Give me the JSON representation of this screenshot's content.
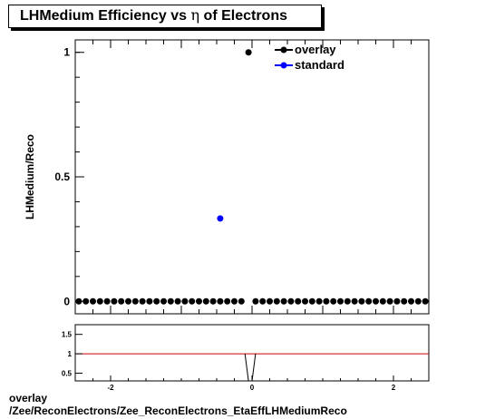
{
  "title": {
    "prefix": "LHMedium Efficiency vs ",
    "symbol": "η",
    "suffix": " of Electrons"
  },
  "footer": {
    "line1": "overlay",
    "line2": "/Zee/ReconElectrons/Zee_ReconElectrons_EtaEffLHMediumReco"
  },
  "chart_data": [
    {
      "type": "scatter",
      "ylabel": "LHMedium/Reco",
      "xlim": [
        -2.5,
        2.5
      ],
      "ylim": [
        -0.05,
        1.05
      ],
      "y_ticks": [
        0,
        0.5,
        1
      ],
      "y_tick_labels": [
        "0",
        "0.5",
        "1"
      ],
      "legend_position": "top-right",
      "series": [
        {
          "name": "overlay",
          "color": "#000000",
          "x": [
            -2.45,
            -2.35,
            -2.25,
            -2.15,
            -2.05,
            -1.95,
            -1.85,
            -1.75,
            -1.65,
            -1.55,
            -1.45,
            -1.35,
            -1.25,
            -1.15,
            -1.05,
            -0.95,
            -0.85,
            -0.75,
            -0.65,
            -0.55,
            -0.45,
            -0.35,
            -0.25,
            -0.15,
            -0.05,
            0.05,
            0.15,
            0.25,
            0.35,
            0.45,
            0.55,
            0.65,
            0.75,
            0.85,
            0.95,
            1.05,
            1.15,
            1.25,
            1.35,
            1.45,
            1.55,
            1.65,
            1.75,
            1.85,
            1.95,
            2.05,
            2.15,
            2.25,
            2.35,
            2.45
          ],
          "y": [
            0,
            0,
            0,
            0,
            0,
            0,
            0,
            0,
            0,
            0,
            0,
            0,
            0,
            0,
            0,
            0,
            0,
            0,
            0,
            0,
            0,
            0,
            0,
            0,
            1,
            0,
            0,
            0,
            0,
            0,
            0,
            0,
            0,
            0,
            0,
            0,
            0,
            0,
            0,
            0,
            0,
            0,
            0,
            0,
            0,
            0,
            0,
            0,
            0,
            0
          ]
        },
        {
          "name": "standard",
          "color": "#0000ff",
          "x": [
            -0.45
          ],
          "y": [
            0.333
          ]
        }
      ]
    },
    {
      "type": "line",
      "xlim": [
        -2.5,
        2.5
      ],
      "ylim": [
        0.3,
        1.75
      ],
      "x_ticks": [
        -2,
        0,
        2
      ],
      "x_tick_labels": [
        "-2",
        "0",
        "2"
      ],
      "y_ticks": [
        0.5,
        1,
        1.5
      ],
      "y_tick_labels": [
        "0.5",
        "1",
        "1.5"
      ],
      "reference_line": {
        "y": 1,
        "color": "#cc0000"
      },
      "x": [
        -0.1,
        -0.05,
        0.0,
        0.05
      ],
      "y": [
        1,
        0.3,
        0.3,
        1
      ],
      "line_color": "#000000"
    }
  ]
}
